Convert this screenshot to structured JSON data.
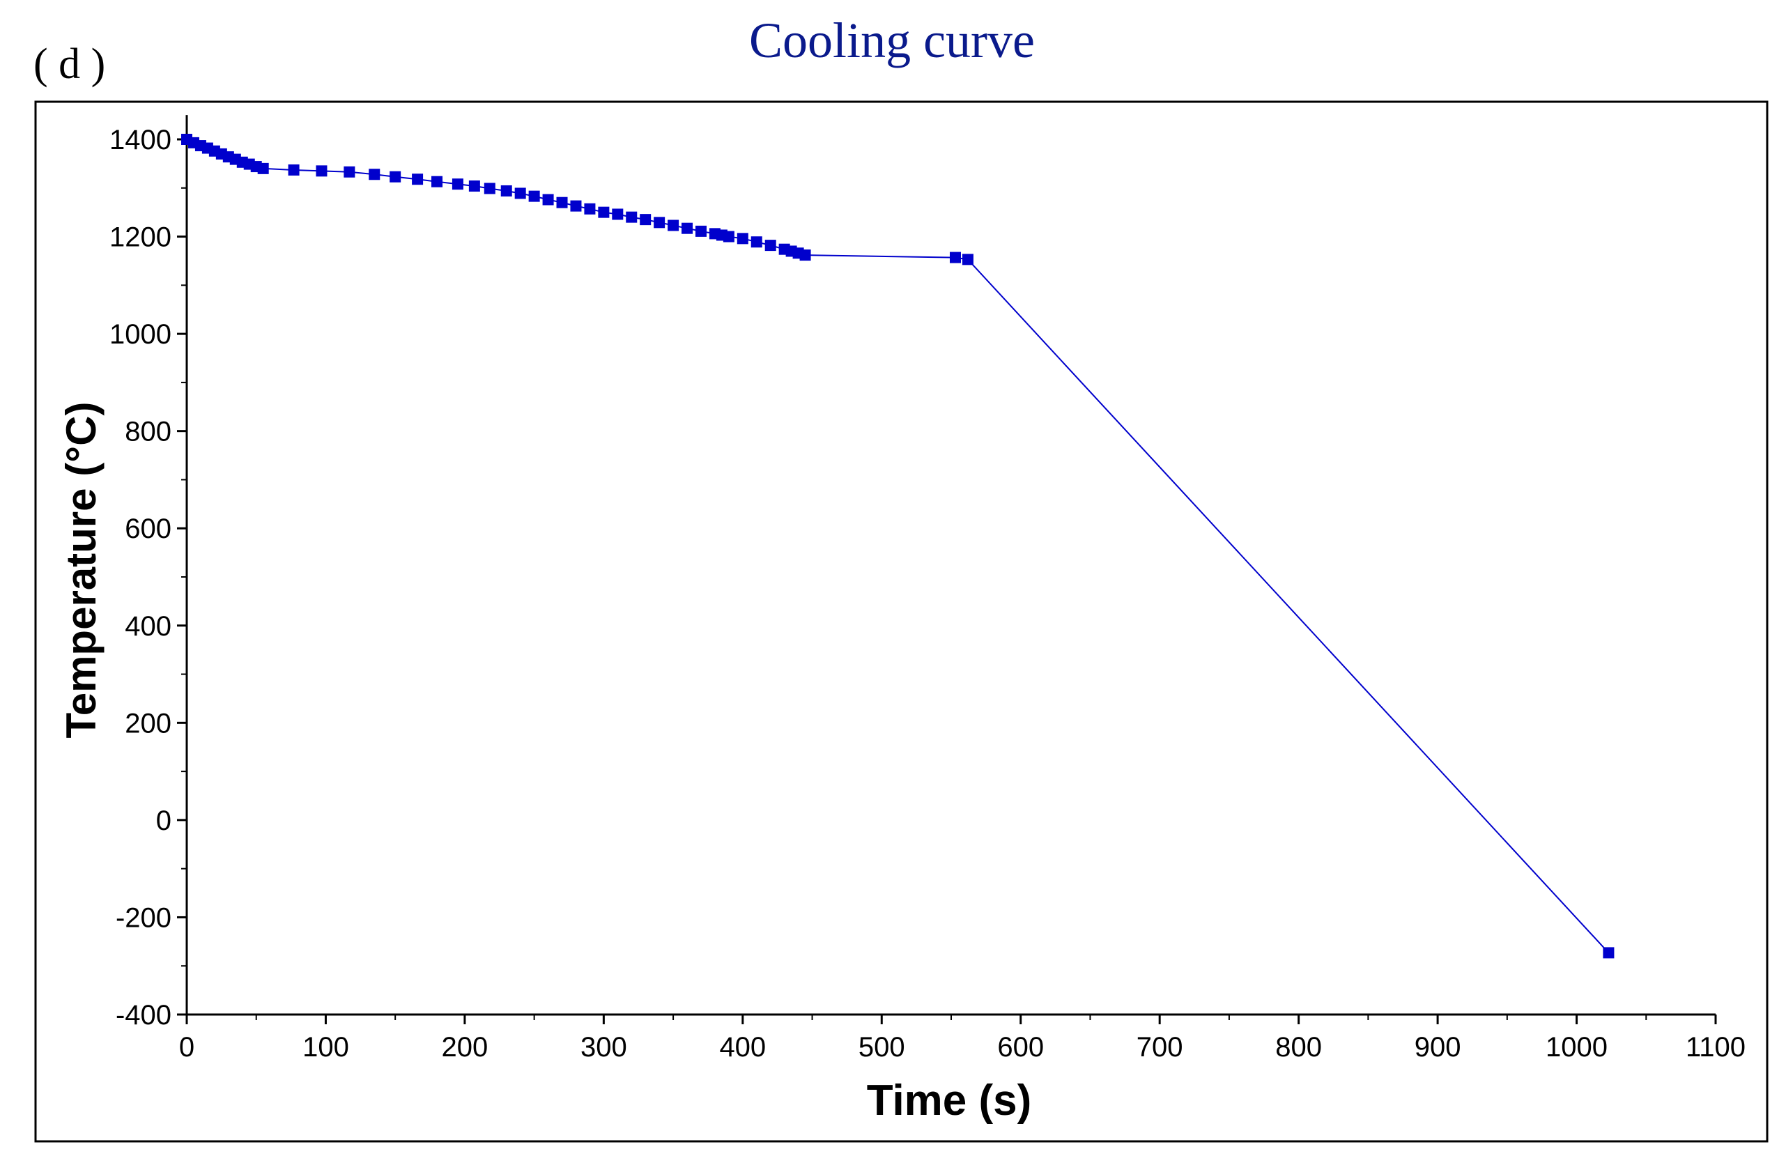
{
  "panel_label": "( d )",
  "chart_data": {
    "type": "line",
    "title": "Cooling curve",
    "xlabel": "Time (s)",
    "ylabel": "Temperature (°C)",
    "xlim": [
      0,
      1100
    ],
    "ylim": [
      -400,
      1450
    ],
    "xticks": [
      0,
      100,
      200,
      300,
      400,
      500,
      600,
      700,
      800,
      900,
      1000,
      1100
    ],
    "yticks": [
      -400,
      -200,
      0,
      200,
      400,
      600,
      800,
      1000,
      1200,
      1400
    ],
    "grid": false,
    "legend": "none",
    "series": [
      {
        "name": "Cooling curve",
        "color": "#0000cc",
        "marker": "square",
        "x": [
          0,
          5,
          10,
          15,
          20,
          25,
          30,
          35,
          40,
          45,
          50,
          55,
          77,
          97,
          117,
          135,
          150,
          166,
          180,
          195,
          207,
          218,
          230,
          240,
          250,
          260,
          270,
          280,
          290,
          300,
          310,
          320,
          330,
          340,
          350,
          360,
          370,
          380,
          385,
          390,
          400,
          410,
          420,
          430,
          435,
          440,
          445,
          553,
          562,
          1023
        ],
        "y": [
          1400,
          1393,
          1387,
          1382,
          1376,
          1370,
          1364,
          1359,
          1353,
          1349,
          1344,
          1340,
          1337,
          1335,
          1333,
          1328,
          1323,
          1318,
          1313,
          1308,
          1304,
          1299,
          1294,
          1289,
          1283,
          1276,
          1270,
          1263,
          1257,
          1250,
          1246,
          1240,
          1235,
          1229,
          1223,
          1217,
          1211,
          1206,
          1203,
          1200,
          1196,
          1189,
          1182,
          1174,
          1170,
          1166,
          1162,
          1157,
          1153,
          -273
        ]
      }
    ]
  }
}
